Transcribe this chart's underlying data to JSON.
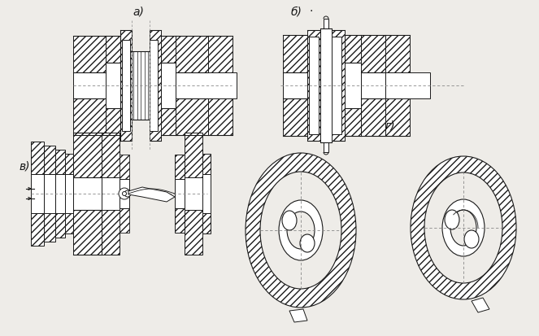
{
  "bg_color": "#eeece8",
  "line_color": "#1a1a1a",
  "label_a": "a)",
  "label_b": "б)",
  "label_v": "в)",
  "label_g": "г)",
  "label_fontsize": 10,
  "fig_width": 6.63,
  "fig_height": 4.13,
  "dpi": 100
}
